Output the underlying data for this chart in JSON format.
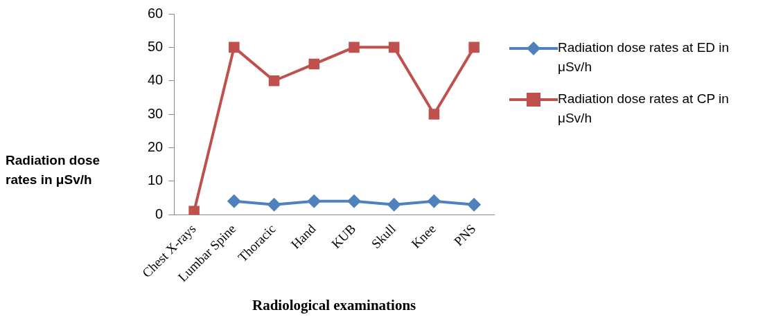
{
  "chart_data": {
    "type": "line",
    "xlabel": "Radiological examinations",
    "ylabel": "Radiation dose rates in  μSv/h",
    "categories": [
      "Chest X-rays",
      "Lumbar Spine",
      "Thoracic",
      "Hand",
      "KUB",
      "Skull",
      "Knee",
      "PNS"
    ],
    "series": [
      {
        "name": "Radiation dose rates at ED in μSv/h",
        "color": "#4f81bd",
        "marker": "diamond",
        "values": [
          null,
          4,
          3,
          4,
          4,
          3,
          4,
          3
        ]
      },
      {
        "name": "Radiation dose rates at CP in μSv/h",
        "color": "#c0504d",
        "marker": "square",
        "values": [
          1,
          50,
          40,
          45,
          50,
          50,
          30,
          50
        ]
      }
    ],
    "ylim": [
      0,
      60
    ],
    "yticks": [
      0,
      10,
      20,
      30,
      40,
      50,
      60
    ],
    "grid": false,
    "legend": "right"
  }
}
